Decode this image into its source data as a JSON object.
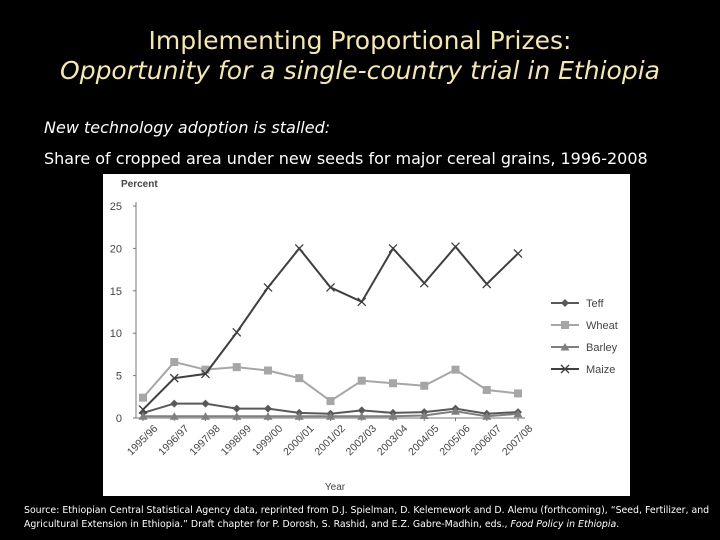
{
  "slide": {
    "title_line1": "Implementing Proportional Prizes:",
    "title_line2": "Opportunity for a single-country trial in Ethiopia",
    "subtitle_line1": "New technology adoption is stalled:",
    "subtitle_line2": "Share of cropped area under new seeds for major cereal grains, 1996-2008",
    "source_text": "Source: Ethiopian Central Statistical Agency data, reprinted from D.J. Spielman, D. Kelemework and D. Alemu (forthcoming), “Seed, Fertilizer, and Agricultural Extension in Ethiopia.” Draft chapter for P. Dorosh, S. Rashid, and E.Z. Gabre-Madhin, eds.,",
    "source_italic": "Food Policy in Ethiopia",
    "source_end": "."
  },
  "chart_data": {
    "type": "line",
    "ylabel": "Percent",
    "xlabel": "Year",
    "ylim": [
      0,
      25
    ],
    "yticks": [
      0,
      5,
      10,
      15,
      20,
      25
    ],
    "grid": false,
    "legend_position": "right",
    "categories": [
      "1995/96",
      "1996/97",
      "1997/98",
      "1998/99",
      "1999/00",
      "2000/01",
      "2001/02",
      "2002/03",
      "2003/04",
      "2004/05",
      "2005/06",
      "2006/07",
      "2007/08"
    ],
    "series": [
      {
        "name": "Teff",
        "color": "#595959",
        "marker": "diamond",
        "values": [
          0.6,
          1.7,
          1.7,
          1.1,
          1.1,
          0.6,
          0.5,
          0.9,
          0.6,
          0.7,
          1.1,
          0.5,
          0.7
        ]
      },
      {
        "name": "Wheat",
        "color": "#a6a6a6",
        "marker": "square",
        "values": [
          2.4,
          6.6,
          5.7,
          6.0,
          5.6,
          4.7,
          2.0,
          4.4,
          4.1,
          3.8,
          5.7,
          3.3,
          2.9
        ]
      },
      {
        "name": "Barley",
        "color": "#7f7f7f",
        "marker": "triangle",
        "values": [
          0.2,
          0.2,
          0.2,
          0.2,
          0.2,
          0.2,
          0.2,
          0.2,
          0.2,
          0.3,
          0.8,
          0.2,
          0.5
        ]
      },
      {
        "name": "Maize",
        "color": "#3f3f3f",
        "marker": "x",
        "values": [
          1.0,
          4.7,
          5.2,
          10.1,
          15.4,
          20.0,
          15.4,
          13.7,
          20.0,
          15.9,
          20.2,
          15.8,
          19.4
        ]
      }
    ]
  }
}
